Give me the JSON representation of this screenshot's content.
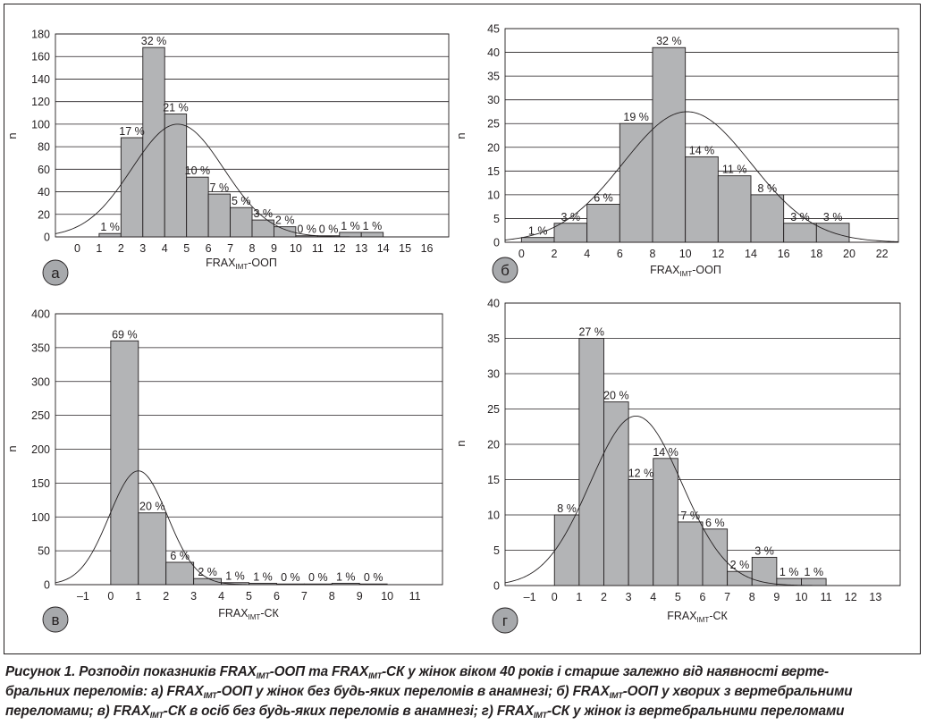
{
  "caption": {
    "line1": [
      {
        "t": "Рисунок 1. Розподіл показників FRAX"
      },
      {
        "t": "ІМТ",
        "sub": true
      },
      {
        "t": "-ООП та FRAX"
      },
      {
        "t": "ІМТ",
        "sub": true
      },
      {
        "t": "-СК у жінок віком 40 років і старше залежно від наявності верте-"
      }
    ],
    "line2": [
      {
        "t": "бральних переломів: а) FRAX"
      },
      {
        "t": "ІМТ",
        "sub": true
      },
      {
        "t": "-ООП у жінок без будь-яких переломів в анамнезі; б) FRAX"
      },
      {
        "t": "ІМТ",
        "sub": true
      },
      {
        "t": "-ООП у хворих з вертебральними"
      }
    ],
    "line3": [
      {
        "t": "переломами; в) FRAX"
      },
      {
        "t": "ІМТ",
        "sub": true
      },
      {
        "t": "-СК в осіб без будь-яких переломів в анамнезі; г) FRAX"
      },
      {
        "t": "ІМТ",
        "sub": true
      },
      {
        "t": "-СК у жінок із вертебральними переломами"
      }
    ]
  },
  "colors": {
    "bar": "#b3b4b6",
    "stroke": "#231f20",
    "panel_badge": "#a7a9ac"
  },
  "chart_data": [
    {
      "id": "a",
      "panel_label": "а",
      "type": "bar",
      "ylabel": "n",
      "xlabel_main": "FRAX",
      "xlabel_sub": "ІМТ",
      "xlabel_tail": "-ООП",
      "ylim": [
        0,
        180
      ],
      "yticks": [
        0,
        20,
        40,
        60,
        80,
        100,
        120,
        140,
        160,
        180
      ],
      "xlim": [
        -1,
        17
      ],
      "xticks": [
        0,
        1,
        2,
        3,
        4,
        5,
        6,
        7,
        8,
        9,
        10,
        11,
        12,
        13,
        14,
        15,
        16
      ],
      "bin_width": 1,
      "bins": [
        {
          "x0": 1,
          "value": 3,
          "label": "1 %"
        },
        {
          "x0": 2,
          "value": 88,
          "label": "17 %"
        },
        {
          "x0": 3,
          "value": 168,
          "label": "32 %"
        },
        {
          "x0": 4,
          "value": 109,
          "label": "21 %"
        },
        {
          "x0": 5,
          "value": 53,
          "label": "10 %"
        },
        {
          "x0": 6,
          "value": 38,
          "label": "7 %"
        },
        {
          "x0": 7,
          "value": 26,
          "label": "5 %"
        },
        {
          "x0": 8,
          "value": 15,
          "label": "3 %"
        },
        {
          "x0": 9,
          "value": 9,
          "label": "2 %"
        },
        {
          "x0": 10,
          "value": 1,
          "label": "0 %"
        },
        {
          "x0": 11,
          "value": 1,
          "label": "0 %"
        },
        {
          "x0": 12,
          "value": 4,
          "label": "1 %"
        },
        {
          "x0": 13,
          "value": 4,
          "label": "1 %"
        }
      ],
      "normal_curve": {
        "mean": 4.6,
        "sd": 2.1,
        "peak": 100
      },
      "grid": true
    },
    {
      "id": "b",
      "panel_label": "б",
      "type": "bar",
      "ylabel": "n",
      "xlabel_main": "FRAX",
      "xlabel_sub": "ІМТ",
      "xlabel_tail": "-ООП",
      "ylim": [
        0,
        45
      ],
      "yticks": [
        0,
        5,
        10,
        15,
        20,
        25,
        30,
        35,
        40,
        45
      ],
      "xlim": [
        -1,
        23
      ],
      "xticks": [
        0,
        2,
        4,
        6,
        8,
        10,
        12,
        14,
        16,
        18,
        20,
        22
      ],
      "bin_width": 2,
      "bins": [
        {
          "x0": 0,
          "value": 1,
          "label": "1 %"
        },
        {
          "x0": 2,
          "value": 4,
          "label": "3 %"
        },
        {
          "x0": 4,
          "value": 8,
          "label": "6 %"
        },
        {
          "x0": 6,
          "value": 25,
          "label": "19 %"
        },
        {
          "x0": 8,
          "value": 41,
          "label": "32 %"
        },
        {
          "x0": 10,
          "value": 18,
          "label": "14 %"
        },
        {
          "x0": 12,
          "value": 14,
          "label": "11 %"
        },
        {
          "x0": 14,
          "value": 10,
          "label": "8 %"
        },
        {
          "x0": 16,
          "value": 4,
          "label": "3 %"
        },
        {
          "x0": 18,
          "value": 4,
          "label": "3 %"
        }
      ],
      "normal_curve": {
        "mean": 10.1,
        "sd": 3.9,
        "peak": 27.5
      },
      "grid": true
    },
    {
      "id": "v",
      "panel_label": "в",
      "type": "bar",
      "ylabel": "n",
      "xlabel_main": "FRAX",
      "xlabel_sub": "ІМТ",
      "xlabel_tail": "-СК",
      "ylim": [
        0,
        400
      ],
      "yticks": [
        0,
        50,
        100,
        150,
        200,
        250,
        300,
        350,
        400
      ],
      "xlim": [
        -2,
        12
      ],
      "xticks": [
        -1,
        0,
        1,
        2,
        3,
        4,
        5,
        6,
        7,
        8,
        9,
        10,
        11
      ],
      "bin_width": 1,
      "bins": [
        {
          "x0": 0,
          "value": 360,
          "label": "69 %"
        },
        {
          "x0": 1,
          "value": 106,
          "label": "20 %"
        },
        {
          "x0": 2,
          "value": 33,
          "label": "6 %"
        },
        {
          "x0": 3,
          "value": 9,
          "label": "2 %"
        },
        {
          "x0": 4,
          "value": 3,
          "label": "1 %"
        },
        {
          "x0": 5,
          "value": 2,
          "label": "1 %"
        },
        {
          "x0": 6,
          "value": 1,
          "label": "0 %"
        },
        {
          "x0": 7,
          "value": 1,
          "label": "0 %"
        },
        {
          "x0": 8,
          "value": 2,
          "label": "1 %"
        },
        {
          "x0": 9,
          "value": 1,
          "label": "0 %"
        }
      ],
      "normal_curve": {
        "mean": 1.0,
        "sd": 1.05,
        "peak": 168
      },
      "grid": true
    },
    {
      "id": "g",
      "panel_label": "г",
      "type": "bar",
      "ylabel": "n",
      "xlabel_main": "FRAX",
      "xlabel_sub": "ІМТ",
      "xlabel_tail": "-СК",
      "ylim": [
        0,
        40
      ],
      "yticks": [
        0,
        5,
        10,
        15,
        20,
        25,
        30,
        35,
        40
      ],
      "xlim": [
        -2,
        14
      ],
      "xticks": [
        -1,
        0,
        1,
        2,
        3,
        4,
        5,
        6,
        7,
        8,
        9,
        10,
        11,
        12,
        13
      ],
      "bin_width": 1,
      "bins": [
        {
          "x0": 0,
          "value": 10,
          "label": "8 %"
        },
        {
          "x0": 1,
          "value": 35,
          "label": "27 %"
        },
        {
          "x0": 2,
          "value": 26,
          "label": "20 %"
        },
        {
          "x0": 3,
          "value": 15,
          "label": "12 %"
        },
        {
          "x0": 4,
          "value": 18,
          "label": "14 %"
        },
        {
          "x0": 5,
          "value": 9,
          "label": "7 %"
        },
        {
          "x0": 6,
          "value": 8,
          "label": "6 %"
        },
        {
          "x0": 7,
          "value": 2,
          "label": "2 %"
        },
        {
          "x0": 8,
          "value": 4,
          "label": "3 %"
        },
        {
          "x0": 9,
          "value": 1,
          "label": "1 %"
        },
        {
          "x0": 10,
          "value": 1,
          "label": "1 %"
        }
      ],
      "normal_curve": {
        "mean": 3.3,
        "sd": 1.85,
        "peak": 24
      },
      "grid": true
    }
  ]
}
